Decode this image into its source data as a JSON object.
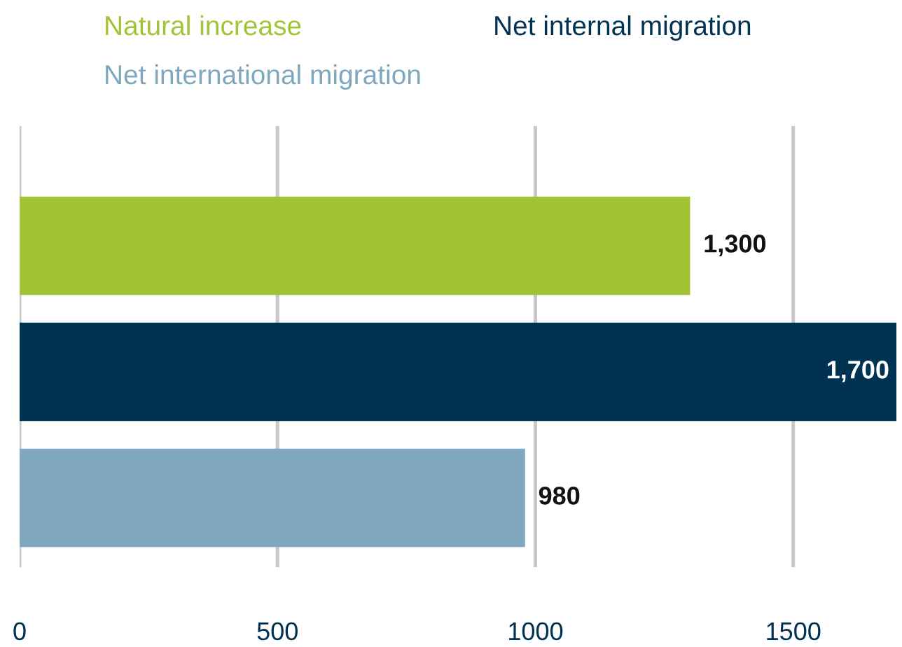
{
  "chart_data": {
    "type": "bar",
    "orientation": "horizontal",
    "categories": [
      null,
      null,
      null
    ],
    "series": [
      {
        "name": "Natural increase",
        "color": "#a1c335",
        "values": [
          1300,
          null,
          null
        ],
        "value_labels": [
          "1,300",
          null,
          null
        ]
      },
      {
        "name": "Net internal migration",
        "color": "#003251",
        "values": [
          null,
          1700,
          null
        ],
        "value_labels": [
          null,
          "1,700",
          null
        ]
      },
      {
        "name": "Net international migration",
        "color": "#7fa8bf",
        "values": [
          null,
          null,
          980
        ],
        "value_labels": [
          null,
          null,
          "980"
        ]
      }
    ],
    "xlim": [
      0,
      1700
    ],
    "xticks": [
      0,
      500,
      1000,
      1500
    ],
    "grid": "x",
    "legend": "top"
  }
}
